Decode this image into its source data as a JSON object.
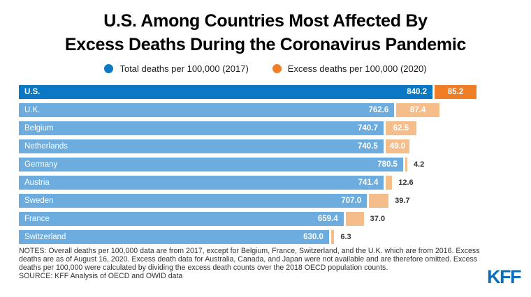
{
  "title": {
    "line1": "U.S. Among Countries Most Affected By",
    "line2": "Excess Deaths During the Coronavirus Pandemic"
  },
  "legend": [
    {
      "label": "Total deaths per 100,000 (2017)",
      "color": "#0A78C4"
    },
    {
      "label": "Excess deaths per 100,000 (2020)",
      "color": "#F07E26"
    }
  ],
  "chart_data": {
    "type": "bar",
    "orientation": "horizontal",
    "sorted_by": "total plus excess, descending",
    "categories": [
      "U.S.",
      "U.K.",
      "Belgium",
      "Netherlands",
      "Germany",
      "Austria",
      "Sweden",
      "France",
      "Switzerland"
    ],
    "series": [
      {
        "name": "Total deaths per 100,000 (2017)",
        "values": [
          840.2,
          762.6,
          740.7,
          740.5,
          780.5,
          741.4,
          707.0,
          659.4,
          630.0
        ]
      },
      {
        "name": "Excess deaths per 100,000 (2020)",
        "values": [
          85.2,
          87.4,
          62.5,
          49.0,
          4.2,
          12.6,
          39.7,
          37.0,
          6.3
        ]
      }
    ],
    "value_labels_shown": true,
    "highlight_category": "U.S.",
    "axis_shown": false,
    "xlim": [
      0,
      980
    ]
  },
  "rows": [
    {
      "country": "U.S.",
      "total": "840.2",
      "excess": "85.2",
      "highlight": true,
      "excess_label_inside": true
    },
    {
      "country": "U.K.",
      "total": "762.6",
      "excess": "87.4",
      "highlight": false,
      "excess_label_inside": true
    },
    {
      "country": "Belgium",
      "total": "740.7",
      "excess": "62.5",
      "highlight": false,
      "excess_label_inside": true
    },
    {
      "country": "Netherlands",
      "total": "740.5",
      "excess": "49.0",
      "highlight": false,
      "excess_label_inside": true
    },
    {
      "country": "Germany",
      "total": "780.5",
      "excess": "4.2",
      "highlight": false,
      "excess_label_inside": false
    },
    {
      "country": "Austria",
      "total": "741.4",
      "excess": "12.6",
      "highlight": false,
      "excess_label_inside": false
    },
    {
      "country": "Sweden",
      "total": "707.0",
      "excess": "39.7",
      "highlight": false,
      "excess_label_inside": false
    },
    {
      "country": "France",
      "total": "659.4",
      "excess": "37.0",
      "highlight": false,
      "excess_label_inside": false
    },
    {
      "country": "Switzerland",
      "total": "630.0",
      "excess": "6.3",
      "highlight": false,
      "excess_label_inside": false
    }
  ],
  "colors": {
    "blue_dark": "#0A78C4",
    "blue_light": "#6CACDE",
    "orange_dark": "#F07E26",
    "orange_light": "#F5BD8A",
    "outside_label": "#333333",
    "kff_blue": "#0A6FB8"
  },
  "notes": "NOTES: Overall deaths per 100,000 data are from 2017, except for Belgium, France, Switzerland, and the U.K. which are from 2016.  Excess deaths are as of August 16, 2020. Excess death data for Australia, Canada, and Japan were not available and are therefore omitted. Excess deaths per 100,000  were calculated by dividing the excess death counts over the 2018 OECD population counts.",
  "source": "SOURCE: KFF Analysis of OECD and OWID data",
  "logo": "KFF"
}
